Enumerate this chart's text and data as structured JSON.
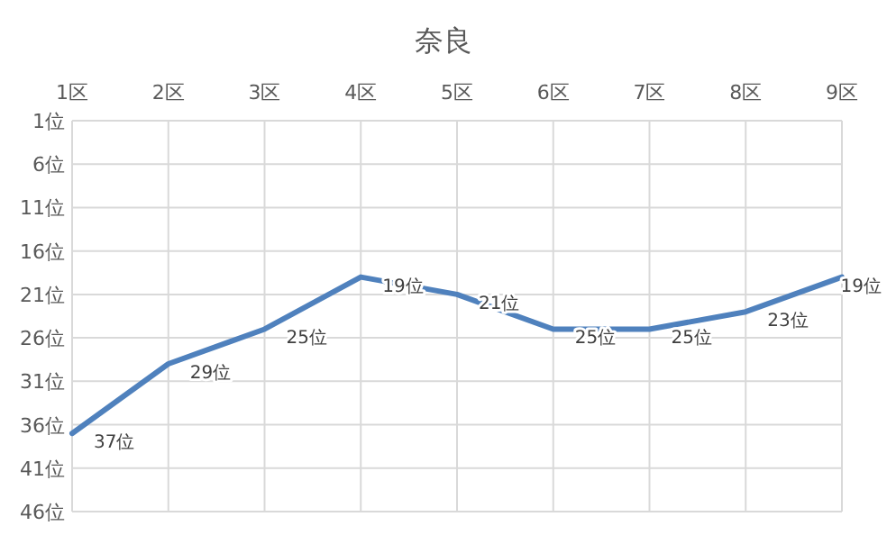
{
  "chart_data": {
    "type": "line",
    "title": "奈良",
    "categories": [
      "1区",
      "2区",
      "3区",
      "4区",
      "5区",
      "6区",
      "7区",
      "8区",
      "9区"
    ],
    "values": [
      37,
      29,
      25,
      19,
      21,
      25,
      25,
      23,
      19
    ],
    "value_labels": [
      "37位",
      "29位",
      "25位",
      "19位",
      "21位",
      "25位",
      "25位",
      "23位",
      "19位"
    ],
    "color": "#4f81bd",
    "marker": "none",
    "line_style": "solid",
    "grid": true,
    "ylim": [
      46,
      1
    ],
    "yticks": [
      {
        "value": 1,
        "label": "1位"
      },
      {
        "value": 6,
        "label": "6位"
      },
      {
        "value": 11,
        "label": "11位"
      },
      {
        "value": 16,
        "label": "16位"
      },
      {
        "value": 21,
        "label": "21位"
      },
      {
        "value": 26,
        "label": "26位"
      },
      {
        "value": 31,
        "label": "31位"
      },
      {
        "value": 36,
        "label": "36位"
      },
      {
        "value": 41,
        "label": "41位"
      },
      {
        "value": 46,
        "label": "46位"
      }
    ]
  }
}
